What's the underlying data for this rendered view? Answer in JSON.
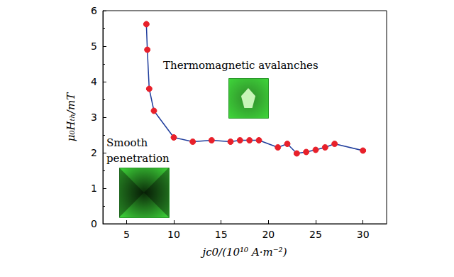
{
  "chart_data": {
    "type": "line",
    "x_label": "jc0/(10¹⁰ A·m⁻²)",
    "y_label": "μ₀Hₜₕ/mT",
    "annotations": [
      "Thermomagnetic avalanches",
      "Smooth\npenetration"
    ],
    "x": [
      7.1,
      7.2,
      7.4,
      7.9,
      10,
      12,
      14,
      16,
      17,
      18,
      19,
      21,
      22,
      23,
      24,
      25,
      26,
      27,
      30
    ],
    "values": [
      5.62,
      4.9,
      3.8,
      3.18,
      2.43,
      2.31,
      2.35,
      2.31,
      2.35,
      2.35,
      2.35,
      2.15,
      2.25,
      1.98,
      2.02,
      2.08,
      2.15,
      2.25,
      2.06
    ],
    "color": "#1f3d9c",
    "marker": "circle",
    "xlim": [
      2.5,
      32.5
    ],
    "xticks": [
      5,
      10,
      15,
      20,
      25,
      30
    ],
    "ylim": [
      0,
      6
    ],
    "yticks": [
      0,
      1,
      2,
      3,
      4,
      5,
      6
    ],
    "grid": false
  }
}
